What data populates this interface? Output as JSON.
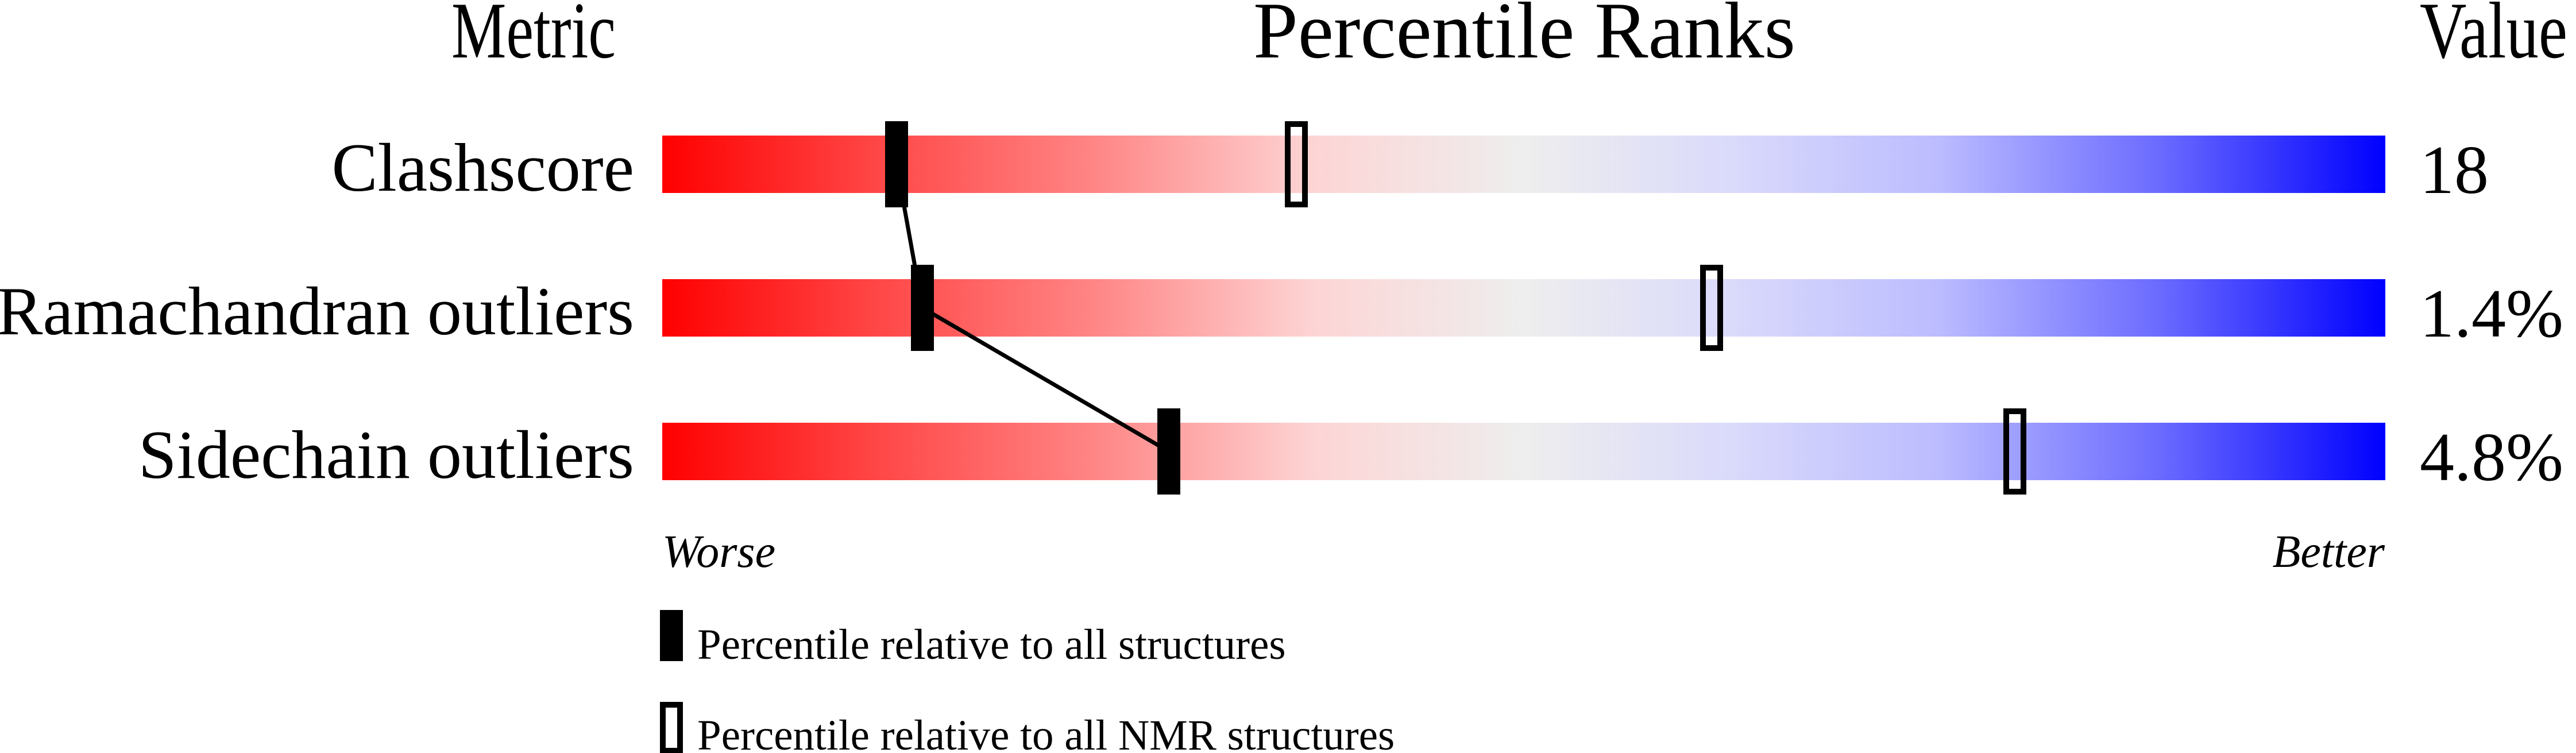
{
  "header": {
    "metric": "Metric",
    "percentile_ranks": "Percentile Ranks",
    "value": "Value"
  },
  "chart_data": {
    "type": "bar",
    "title": "Percentile Ranks",
    "xlim": [
      0,
      100
    ],
    "scale_left_label": "Worse",
    "scale_right_label": "Better",
    "gradient_colors": [
      "#ff0000",
      "#eeeeee",
      "#0000ff"
    ],
    "rows": [
      {
        "metric": "Clashscore",
        "value": "18",
        "percentile_all": 13.6,
        "percentile_nmr": 36.8
      },
      {
        "metric": "Ramachandran outliers",
        "value": "1.4%",
        "percentile_all": 15.1,
        "percentile_nmr": 60.9
      },
      {
        "metric": "Sidechain outliers",
        "value": "4.8%",
        "percentile_all": 29.4,
        "percentile_nmr": 78.5
      }
    ],
    "legend": [
      {
        "marker": "filled",
        "label": "Percentile relative to all structures"
      },
      {
        "marker": "hollow",
        "label": "Percentile relative to all NMR structures"
      }
    ]
  }
}
